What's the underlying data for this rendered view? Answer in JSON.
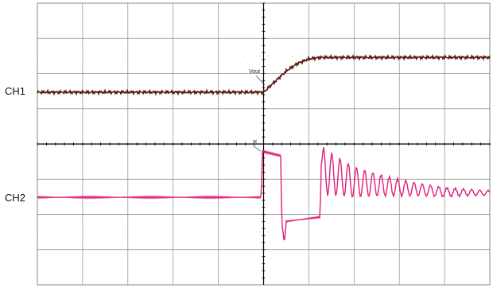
{
  "chart_data": {
    "type": "line",
    "title": "",
    "xlabel": "",
    "ylabel": "",
    "grid": true,
    "grid_divisions": {
      "x": 10,
      "y": 8
    },
    "x_range_div": [
      -5,
      5
    ],
    "colors": {
      "ch1": "#5a1a10",
      "ch2": "#e0207a",
      "grid": "#8a8a8a",
      "axis": "#000000"
    },
    "channels": [
      {
        "label": "CH1",
        "annotation": "Vout"
      },
      {
        "label": "CH2",
        "annotation": "IX"
      }
    ],
    "series": [
      {
        "name": "Vout",
        "x": [
          -5,
          -0.05,
          0,
          0.25,
          0.5,
          0.75,
          1.0,
          1.25,
          5
        ],
        "y": [
          -0.05,
          -0.05,
          -0.05,
          0.3,
          0.65,
          0.9,
          1.05,
          1.1,
          1.1
        ]
      },
      {
        "name": "IX",
        "x": [
          -5,
          -0.05,
          -0.03,
          0.38,
          0.4,
          0.46,
          0.5,
          1.25,
          1.27,
          1.3,
          2,
          3,
          4,
          5
        ],
        "y": [
          0,
          0,
          1.05,
          0.95,
          -0.55,
          -1.05,
          -0.55,
          -0.45,
          0.75,
          0.6,
          0.35,
          0.22,
          0.12,
          0.1
        ]
      }
    ]
  }
}
